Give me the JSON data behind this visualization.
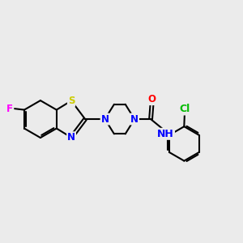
{
  "background_color": "#ebebeb",
  "bond_color": "#000000",
  "bond_width": 1.5,
  "atom_colors": {
    "F": "#ff00ff",
    "S": "#cccc00",
    "N": "#0000ff",
    "O": "#ff0000",
    "Cl": "#00bb00",
    "C": "#000000",
    "H": "#5599ff"
  },
  "font_size_atoms": 8.5
}
